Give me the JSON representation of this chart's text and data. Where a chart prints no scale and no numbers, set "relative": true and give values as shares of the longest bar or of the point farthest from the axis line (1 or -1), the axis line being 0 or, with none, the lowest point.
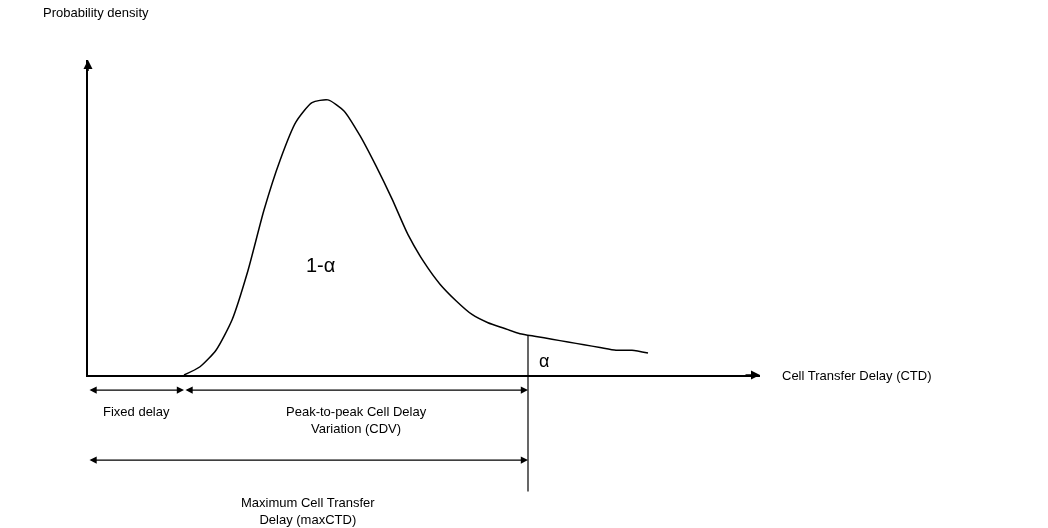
{
  "chart_data": {
    "type": "line",
    "relative": true,
    "xlabel": "Cell Transfer Delay (CTD)",
    "categories": [
      null,
      null,
      null,
      null,
      null,
      null,
      null,
      null,
      null,
      null,
      null,
      null,
      null,
      null,
      null,
      null,
      null,
      null,
      null,
      null,
      null,
      null,
      null,
      null,
      null,
      null,
      null,
      null,
      null,
      null,
      null,
      null,
      null,
      null,
      null,
      null,
      null,
      null,
      null,
      null,
      null,
      null,
      null
    ],
    "series": [
      {
        "color": "#000000",
        "values": [
          null,
          null,
          null,
          null,
          null,
          null,
          0,
          0.03,
          0.09,
          0.2,
          0.38,
          0.6,
          0.78,
          0.92,
          0.99,
          1.0,
          0.96,
          0.87,
          0.76,
          0.64,
          0.51,
          0.41,
          0.33,
          0.27,
          0.22,
          0.19,
          0.17,
          0.15,
          0.14,
          0.13,
          0.12,
          0.11,
          0.1,
          0.09,
          0.09,
          0.08,
          null,
          null,
          null,
          null,
          null,
          null,
          null
        ]
      }
    ],
    "annotations": [
      "Probability density",
      "1-α",
      "α",
      "Fixed delay",
      "Peak-to-peak Cell Delay Variation (CDV)",
      "Maximum Cell Transfer Delay (maxCTD)"
    ],
    "legend": false,
    "marker": "none",
    "line_style": "solid"
  }
}
